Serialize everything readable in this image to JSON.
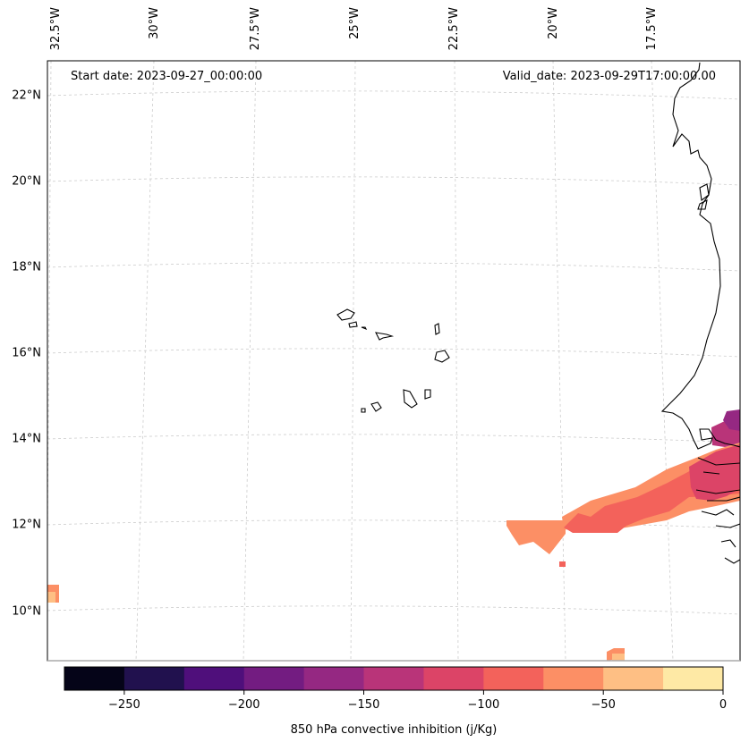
{
  "map": {
    "start_date": "Start date: 2023-09-27_00:00:00",
    "valid_date": "Valid_date: 2023-09-29T17:00:00.00",
    "longitude_labels": [
      "32.5°W",
      "30°W",
      "27.5°W",
      "25°W",
      "22.5°W",
      "20°W",
      "17.5°W"
    ],
    "latitude_labels": [
      "22°N",
      "20°N",
      "18°N",
      "16°N",
      "14°N",
      "12°N",
      "10°N"
    ],
    "coastline_color": "#000000",
    "gridline_color": "#cccccc",
    "features": [
      "Cape Verde islands",
      "West African coastline"
    ]
  },
  "colorbar": {
    "title": "850 hPa convective inhibition (j/Kg)",
    "tick_labels": [
      "−250",
      "−200",
      "−150",
      "−100",
      "−50",
      "0"
    ],
    "min": -275,
    "max": 0,
    "step": 25,
    "colors": [
      "#050418",
      "#21114e",
      "#4f0f7b",
      "#731c81",
      "#952882",
      "#b93479",
      "#dc4467",
      "#f3625b",
      "#fc8f65",
      "#febf84",
      "#fee9a5"
    ]
  },
  "field": {
    "variable": "850 hPa convective inhibition",
    "units": "j/Kg"
  }
}
